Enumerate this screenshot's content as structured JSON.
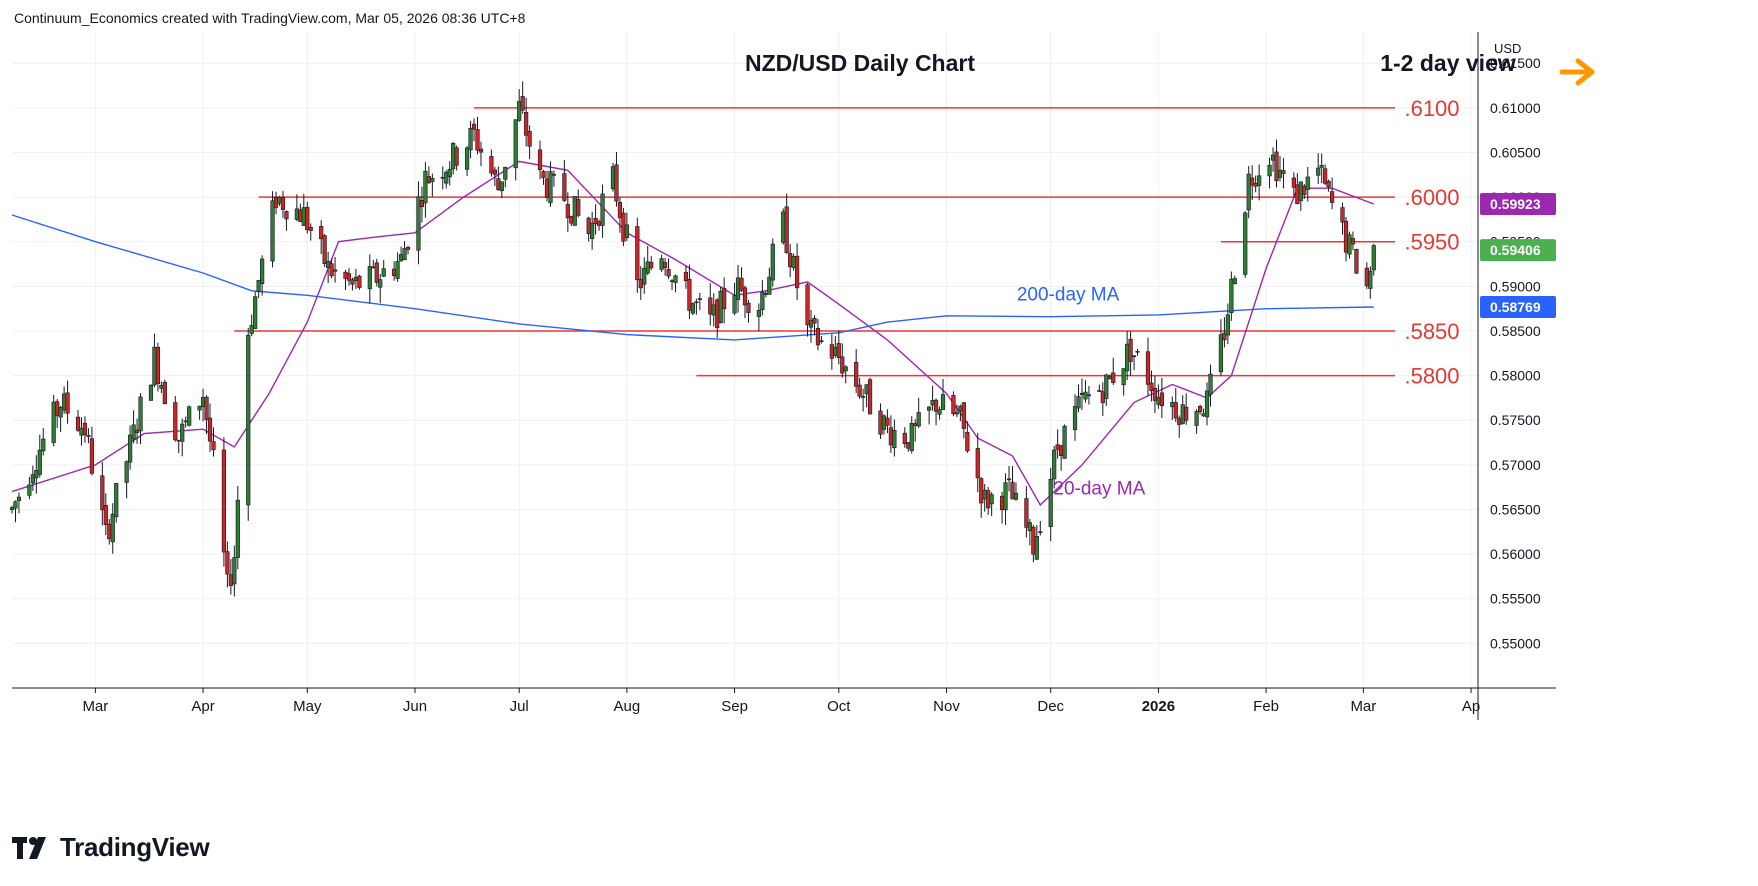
{
  "header": {
    "attribution": "Continuum_Economics created with TradingView.com, Mar 05, 2026 08:36 UTC+8"
  },
  "brand": {
    "name": "TradingView"
  },
  "colors": {
    "up": "#2e7d32",
    "down": "#c62828",
    "ma200": "#2962ff",
    "ma20": "#9c27b0",
    "level": "#e53935",
    "arrow": "#ff9800",
    "last_price": "#4caf50"
  },
  "chart_data": {
    "type": "candlestick",
    "title": "NZD/USD Daily Chart",
    "view_label": "1-2 day view",
    "view_icon": "arrow-right-icon",
    "price_axis_unit": "USD",
    "ylim": [
      0.545,
      0.6185
    ],
    "y_ticks": [
      "0.61500",
      "0.61000",
      "0.60500",
      "0.60000",
      "0.59500",
      "0.59000",
      "0.58500",
      "0.58000",
      "0.57500",
      "0.57000",
      "0.56500",
      "0.56000",
      "0.55500",
      "0.55000"
    ],
    "y_tick_values": [
      0.615,
      0.61,
      0.605,
      0.6,
      0.595,
      0.59,
      0.585,
      0.58,
      0.575,
      0.57,
      0.565,
      0.56,
      0.555,
      0.55
    ],
    "x_tick_labels": [
      "Mar",
      "Apr",
      "May",
      "Jun",
      "Jul",
      "Aug",
      "Sep",
      "Oct",
      "Nov",
      "Dec",
      "2026",
      "Feb",
      "Mar",
      "Ap"
    ],
    "x_tick_dates": [
      "2025-03-01",
      "2025-04-01",
      "2025-05-01",
      "2025-06-01",
      "2025-07-01",
      "2025-08-01",
      "2025-09-01",
      "2025-10-01",
      "2025-11-01",
      "2025-12-01",
      "2026-01-01",
      "2026-02-01",
      "2026-03-01",
      "2026-04-01"
    ],
    "x_range": [
      "2025-02-05",
      "2026-04-03"
    ],
    "levels": [
      {
        "label": ".6100",
        "value": 0.61,
        "from": "2025-06-18"
      },
      {
        "label": ".6000",
        "value": 0.6,
        "from": "2025-04-17"
      },
      {
        "label": ".5950",
        "value": 0.595,
        "from": "2026-01-19"
      },
      {
        "label": ".5850",
        "value": 0.585,
        "from": "2025-04-10"
      },
      {
        "label": ".5800",
        "value": 0.58,
        "from": "2025-08-21"
      }
    ],
    "annotations": [
      {
        "text": "200-day MA",
        "date": "2025-12-06",
        "value": 0.5884,
        "color_key": "ma200"
      },
      {
        "text": "20-day MA",
        "date": "2025-12-15",
        "value": 0.5667,
        "color_key": "ma20"
      }
    ],
    "badges": [
      {
        "label": "0.59923",
        "value": 0.59923,
        "series": "ma20"
      },
      {
        "label": "0.59406",
        "value": 0.59406,
        "series": "last_price"
      },
      {
        "label": "0.58769",
        "value": 0.58769,
        "series": "ma200"
      }
    ],
    "price_path": [
      [
        "2025-02-05",
        0.565
      ],
      [
        "2025-02-12",
        0.571
      ],
      [
        "2025-02-19",
        0.577
      ],
      [
        "2025-02-26",
        0.574
      ],
      [
        "2025-03-04",
        0.562
      ],
      [
        "2025-03-11",
        0.572
      ],
      [
        "2025-03-18",
        0.582
      ],
      [
        "2025-03-25",
        0.573
      ],
      [
        "2025-04-01",
        0.578
      ],
      [
        "2025-04-04",
        0.57
      ],
      [
        "2025-04-08",
        0.556
      ],
      [
        "2025-04-10",
        0.56
      ],
      [
        "2025-04-14",
        0.585
      ],
      [
        "2025-04-22",
        0.6
      ],
      [
        "2025-04-30",
        0.598
      ],
      [
        "2025-05-07",
        0.592
      ],
      [
        "2025-05-14",
        0.59
      ],
      [
        "2025-05-21",
        0.591
      ],
      [
        "2025-05-28",
        0.593
      ],
      [
        "2025-06-04",
        0.602
      ],
      [
        "2025-06-11",
        0.604
      ],
      [
        "2025-06-18",
        0.607
      ],
      [
        "2025-06-25",
        0.601
      ],
      [
        "2025-07-01",
        0.61
      ],
      [
        "2025-07-07",
        0.602
      ],
      [
        "2025-07-14",
        0.6
      ],
      [
        "2025-07-21",
        0.596
      ],
      [
        "2025-07-28",
        0.602
      ],
      [
        "2025-08-04",
        0.59
      ],
      [
        "2025-08-11",
        0.594
      ],
      [
        "2025-08-18",
        0.589
      ],
      [
        "2025-08-25",
        0.586
      ],
      [
        "2025-09-01",
        0.59
      ],
      [
        "2025-09-08",
        0.588
      ],
      [
        "2025-09-15",
        0.597
      ],
      [
        "2025-09-22",
        0.585
      ],
      [
        "2025-10-01",
        0.582
      ],
      [
        "2025-10-08",
        0.578
      ],
      [
        "2025-10-15",
        0.574
      ],
      [
        "2025-10-22",
        0.573
      ],
      [
        "2025-10-29",
        0.577
      ],
      [
        "2025-11-05",
        0.575
      ],
      [
        "2025-11-12",
        0.566
      ],
      [
        "2025-11-19",
        0.567
      ],
      [
        "2025-11-26",
        0.561
      ],
      [
        "2025-12-03",
        0.572
      ],
      [
        "2025-12-10",
        0.577
      ],
      [
        "2025-12-17",
        0.579
      ],
      [
        "2025-12-24",
        0.583
      ],
      [
        "2026-01-01",
        0.578
      ],
      [
        "2026-01-08",
        0.576
      ],
      [
        "2026-01-15",
        0.577
      ],
      [
        "2026-01-20",
        0.585
      ],
      [
        "2026-01-27",
        0.602
      ],
      [
        "2026-02-02",
        0.605
      ],
      [
        "2026-02-09",
        0.6
      ],
      [
        "2026-02-16",
        0.603
      ],
      [
        "2026-02-23",
        0.596
      ],
      [
        "2026-03-02",
        0.59
      ],
      [
        "2026-03-04",
        0.594
      ]
    ],
    "ma200_path": [
      [
        "2025-02-05",
        0.598
      ],
      [
        "2025-03-01",
        0.595
      ],
      [
        "2025-04-01",
        0.5915
      ],
      [
        "2025-04-15",
        0.5895
      ],
      [
        "2025-05-01",
        0.589
      ],
      [
        "2025-06-01",
        0.5875
      ],
      [
        "2025-07-01",
        0.5858
      ],
      [
        "2025-08-01",
        0.5846
      ],
      [
        "2025-09-01",
        0.584
      ],
      [
        "2025-10-01",
        0.5848
      ],
      [
        "2025-10-15",
        0.586
      ],
      [
        "2025-11-01",
        0.5867
      ],
      [
        "2025-12-01",
        0.5866
      ],
      [
        "2026-01-01",
        0.5868
      ],
      [
        "2026-02-01",
        0.5875
      ],
      [
        "2026-03-04",
        0.58769
      ]
    ],
    "ma20_path": [
      [
        "2025-02-05",
        0.567
      ],
      [
        "2025-03-01",
        0.57
      ],
      [
        "2025-03-15",
        0.5735
      ],
      [
        "2025-04-01",
        0.574
      ],
      [
        "2025-04-10",
        0.572
      ],
      [
        "2025-04-20",
        0.578
      ],
      [
        "2025-05-01",
        0.586
      ],
      [
        "2025-05-10",
        0.595
      ],
      [
        "2025-05-20",
        0.5955
      ],
      [
        "2025-06-01",
        0.596
      ],
      [
        "2025-06-15",
        0.6
      ],
      [
        "2025-07-01",
        0.604
      ],
      [
        "2025-07-15",
        0.603
      ],
      [
        "2025-08-01",
        0.596
      ],
      [
        "2025-08-15",
        0.593
      ],
      [
        "2025-09-01",
        0.589
      ],
      [
        "2025-09-10",
        0.5895
      ],
      [
        "2025-09-22",
        0.5905
      ],
      [
        "2025-10-01",
        0.588
      ],
      [
        "2025-10-15",
        0.584
      ],
      [
        "2025-11-01",
        0.578
      ],
      [
        "2025-11-10",
        0.573
      ],
      [
        "2025-11-20",
        0.571
      ],
      [
        "2025-11-28",
        0.5655
      ],
      [
        "2025-12-10",
        0.57
      ],
      [
        "2025-12-25",
        0.577
      ],
      [
        "2026-01-05",
        0.579
      ],
      [
        "2026-01-15",
        0.5775
      ],
      [
        "2026-01-22",
        0.58
      ],
      [
        "2026-02-01",
        0.592
      ],
      [
        "2026-02-10",
        0.601
      ],
      [
        "2026-02-20",
        0.601
      ],
      [
        "2026-03-04",
        0.59923
      ]
    ]
  }
}
